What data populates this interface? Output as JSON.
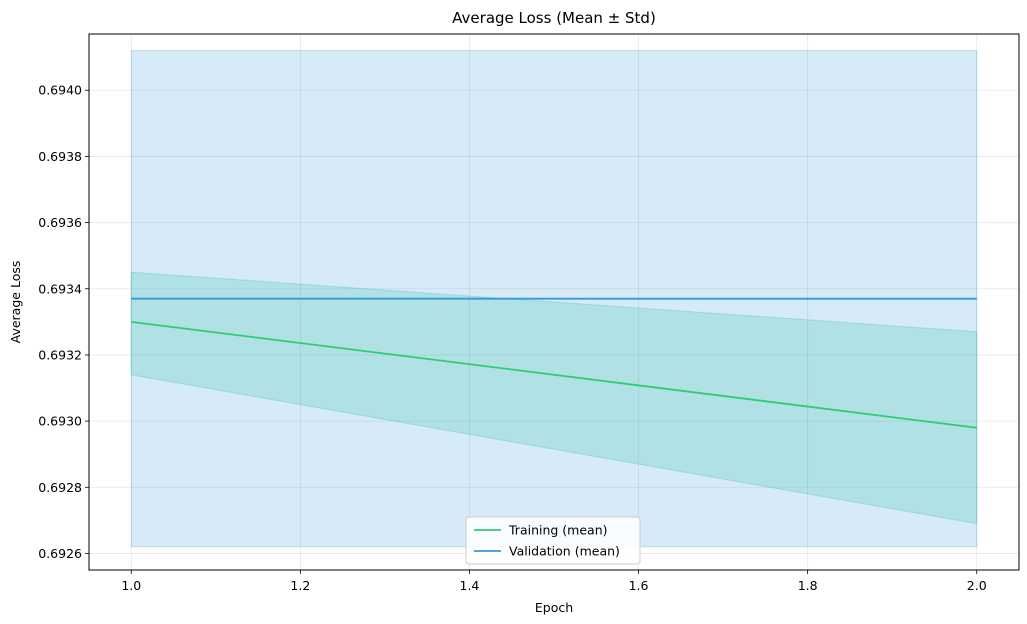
{
  "chart_data": {
    "type": "line",
    "title": "Average Loss (Mean ± Std)",
    "xlabel": "Epoch",
    "ylabel": "Average Loss",
    "xlim": [
      0.95,
      2.05
    ],
    "ylim": [
      0.69255,
      0.69417
    ],
    "xticks": [
      1.0,
      1.2,
      1.4,
      1.6,
      1.8,
      2.0
    ],
    "xtick_labels": [
      "1.0",
      "1.2",
      "1.4",
      "1.6",
      "1.8",
      "2.0"
    ],
    "yticks": [
      0.6926,
      0.6928,
      0.693,
      0.6932,
      0.6934,
      0.6936,
      0.6938,
      0.694
    ],
    "ytick_labels": [
      "0.6926",
      "0.6928",
      "0.6930",
      "0.6932",
      "0.6934",
      "0.6936",
      "0.6938",
      "0.6940"
    ],
    "grid": true,
    "legend_position": "bottom-center",
    "series": [
      {
        "name": "Training (mean)",
        "color": "#2ecc71",
        "band_color": "#1abc9c",
        "x": [
          1.0,
          2.0
        ],
        "mean": [
          0.6933,
          0.69298
        ],
        "lower": [
          0.69314,
          0.69269
        ],
        "upper": [
          0.69345,
          0.69327
        ]
      },
      {
        "name": "Validation (mean)",
        "color": "#3498db",
        "band_color": "#3498db",
        "x": [
          1.0,
          2.0
        ],
        "mean": [
          0.69337,
          0.69337
        ],
        "lower": [
          0.69262,
          0.69262
        ],
        "upper": [
          0.69412,
          0.69412
        ]
      }
    ]
  }
}
